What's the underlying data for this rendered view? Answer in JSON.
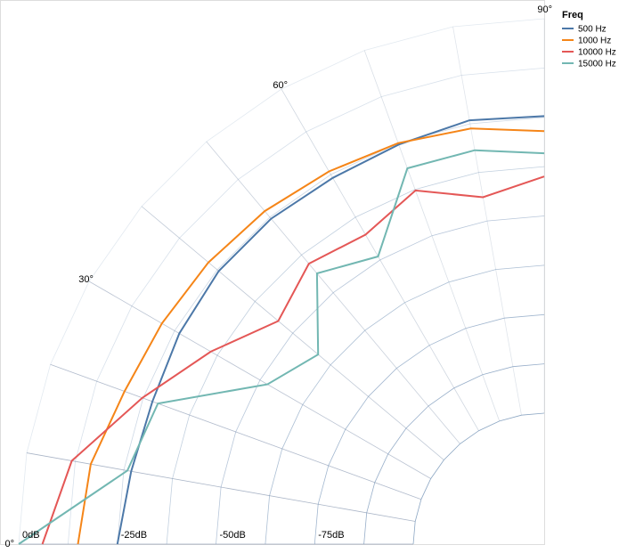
{
  "chart_data": {
    "type": "line",
    "subtype": "polar-quarter",
    "angle_range_deg": [
      0,
      90
    ],
    "radial_axis": {
      "min_db": 0,
      "max_db": -100,
      "tick_labels": [
        "0dB",
        "-25dB",
        "-50dB",
        "-75dB"
      ],
      "tick_values": [
        0,
        -25,
        -50,
        -75
      ]
    },
    "angle_ticks": [
      0,
      30,
      60,
      90
    ],
    "angle_tick_labels": [
      "0°",
      "30°",
      "60°",
      "90°"
    ],
    "legend": {
      "title": "Freq",
      "position": "top-right"
    },
    "angles": [
      0,
      10,
      20,
      30,
      40,
      50,
      60,
      70,
      80,
      90
    ],
    "series": [
      {
        "name": "500 Hz",
        "color": "#4c78a8",
        "values": [
          -25.0,
          -26.9,
          -27.5,
          -26.4,
          -25.5,
          -25.5,
          -26.0,
          -25.4,
          -24.1,
          -24.7
        ]
      },
      {
        "name": "1000 Hz",
        "color": "#f58518",
        "values": [
          -15.0,
          -16.5,
          -20.0,
          -21.3,
          -22.1,
          -23.0,
          -24.1,
          -25.0,
          -26.2,
          -28.5
        ]
      },
      {
        "name": "10000 Hz",
        "color": "#e45756",
        "values": [
          -6.0,
          -11.6,
          -24.8,
          -35.6,
          -45.2,
          -40.4,
          -42.6,
          -37.8,
          -43.9,
          -40.0
        ]
      },
      {
        "name": "15000 Hz",
        "color": "#72b7b2",
        "values": [
          0.0,
          -25.9,
          -29.0,
          -52.2,
          -58.4,
          -43.6,
          -49.0,
          -31.8,
          -31.8,
          -34.1
        ]
      }
    ]
  }
}
